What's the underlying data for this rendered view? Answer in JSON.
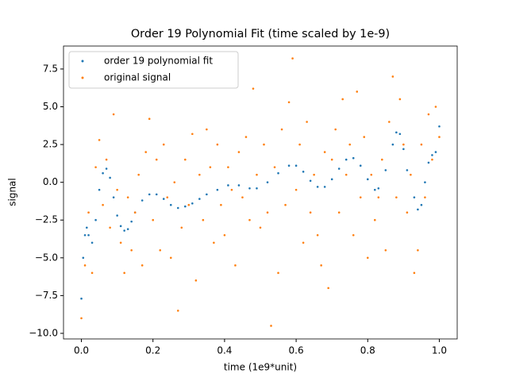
{
  "chart_data": {
    "type": "scatter",
    "title": "Order 19 Polynomial Fit (time scaled by 1e-9)",
    "x_label": "time (1e9*unit)",
    "y_label": "signal",
    "xlim": [
      -0.05,
      1.05
    ],
    "ylim": [
      -10.37,
      9.02
    ],
    "xticks": [
      {
        "value": 0,
        "label": "0.0"
      },
      {
        "value": 0.2,
        "label": "0.2"
      },
      {
        "value": 0.4,
        "label": "0.4"
      },
      {
        "value": 0.6,
        "label": "0.6"
      },
      {
        "value": 0.8,
        "label": "0.8"
      },
      {
        "value": 1,
        "label": "1.0"
      }
    ],
    "yticks": [
      {
        "value": -10,
        "label": "−10.0"
      },
      {
        "value": -7.5,
        "label": "−7.5"
      },
      {
        "value": -5,
        "label": "−5.0"
      },
      {
        "value": -2.5,
        "label": "−2.5"
      },
      {
        "value": 0,
        "label": "0.0"
      },
      {
        "value": 2.5,
        "label": "2.5"
      },
      {
        "value": 5,
        "label": "5.0"
      },
      {
        "value": 7.5,
        "label": "7.5"
      }
    ],
    "legend": "upper left",
    "series": [
      {
        "name": "order 19 polynomial fit",
        "color": "#1f77b4",
        "x": [
          0,
          0.005,
          0.01,
          0.015,
          0.02,
          0.03,
          0.04,
          0.05,
          0.06,
          0.07,
          0.08,
          0.09,
          0.1,
          0.11,
          0.12,
          0.13,
          0.14,
          0.15,
          0.17,
          0.19,
          0.21,
          0.23,
          0.25,
          0.27,
          0.29,
          0.31,
          0.33,
          0.35,
          0.38,
          0.41,
          0.44,
          0.47,
          0.49,
          0.52,
          0.55,
          0.58,
          0.6,
          0.62,
          0.64,
          0.66,
          0.68,
          0.7,
          0.72,
          0.74,
          0.76,
          0.78,
          0.8,
          0.82,
          0.83,
          0.85,
          0.87,
          0.88,
          0.89,
          0.9,
          0.91,
          0.93,
          0.94,
          0.95,
          0.96,
          0.97,
          0.98,
          0.99,
          1
        ],
        "values": [
          -7.7,
          -5,
          -3.5,
          -3,
          -3.5,
          -4,
          -2.5,
          -0.5,
          0.6,
          0.9,
          0.3,
          -1,
          -2.2,
          -2.9,
          -3.2,
          -3.1,
          -2.6,
          -2,
          -1.2,
          -0.8,
          -0.8,
          -1.1,
          -1.5,
          -1.7,
          -1.6,
          -1.4,
          -1.1,
          -0.8,
          -0.5,
          -0.2,
          -0.2,
          -0.4,
          -0.4,
          0,
          0.6,
          1.1,
          1.1,
          0.7,
          0.1,
          -0.3,
          -0.3,
          0.2,
          0.9,
          1.5,
          1.6,
          1.1,
          0.2,
          -0.5,
          -0.4,
          0.8,
          2.5,
          3.3,
          3.2,
          2.2,
          0.8,
          -1,
          -1.8,
          -1.5,
          0,
          1.3,
          1.8,
          2,
          3.7
        ]
      },
      {
        "name": "original signal",
        "color": "#ff7f0e",
        "x": [
          0,
          0.01,
          0.02,
          0.03,
          0.04,
          0.05,
          0.06,
          0.07,
          0.08,
          0.09,
          0.1,
          0.11,
          0.12,
          0.13,
          0.14,
          0.15,
          0.16,
          0.17,
          0.18,
          0.19,
          0.2,
          0.21,
          0.22,
          0.23,
          0.24,
          0.25,
          0.26,
          0.27,
          0.28,
          0.29,
          0.3,
          0.31,
          0.32,
          0.33,
          0.34,
          0.35,
          0.36,
          0.37,
          0.38,
          0.39,
          0.4,
          0.41,
          0.42,
          0.43,
          0.44,
          0.45,
          0.46,
          0.47,
          0.48,
          0.49,
          0.5,
          0.51,
          0.52,
          0.53,
          0.54,
          0.55,
          0.56,
          0.57,
          0.58,
          0.59,
          0.6,
          0.61,
          0.62,
          0.63,
          0.64,
          0.65,
          0.66,
          0.67,
          0.68,
          0.69,
          0.7,
          0.71,
          0.72,
          0.73,
          0.74,
          0.75,
          0.76,
          0.77,
          0.78,
          0.79,
          0.8,
          0.81,
          0.82,
          0.83,
          0.84,
          0.85,
          0.86,
          0.87,
          0.88,
          0.89,
          0.9,
          0.91,
          0.92,
          0.93,
          0.94,
          0.95,
          0.96,
          0.97,
          0.98,
          0.99,
          1
        ],
        "values": [
          -9,
          -5.5,
          -2,
          -6,
          1,
          2.8,
          -1.5,
          1.5,
          -3,
          4.5,
          -0.5,
          -4,
          -6,
          -1,
          -4.5,
          -2,
          0.5,
          -5.5,
          2,
          4.2,
          -2.5,
          1.5,
          -4.5,
          2.5,
          -1,
          -5,
          0,
          -8.5,
          -3,
          1.5,
          -1.5,
          3.2,
          -6.5,
          0.5,
          -2.5,
          3.5,
          1,
          -4,
          2.5,
          -1.5,
          -3.5,
          1,
          -0.5,
          -5.5,
          2,
          -1,
          3,
          -2.5,
          6.2,
          0.5,
          -3,
          2.5,
          -2,
          -9.5,
          1,
          -6,
          3.5,
          -1.5,
          5.3,
          8.2,
          -0.5,
          2.5,
          -4,
          4,
          -2,
          0.5,
          -3.5,
          -5.5,
          2,
          -7,
          1.5,
          3.5,
          -2,
          5.5,
          0.5,
          2.5,
          -3.5,
          6,
          -1,
          3,
          -5,
          0.5,
          -2.5,
          -1,
          1.5,
          -4.5,
          4,
          7,
          -1,
          5.5,
          2.5,
          -2,
          0.5,
          -6,
          -4.5,
          2.5,
          -1,
          4.5,
          1.5,
          5,
          3
        ]
      }
    ]
  }
}
